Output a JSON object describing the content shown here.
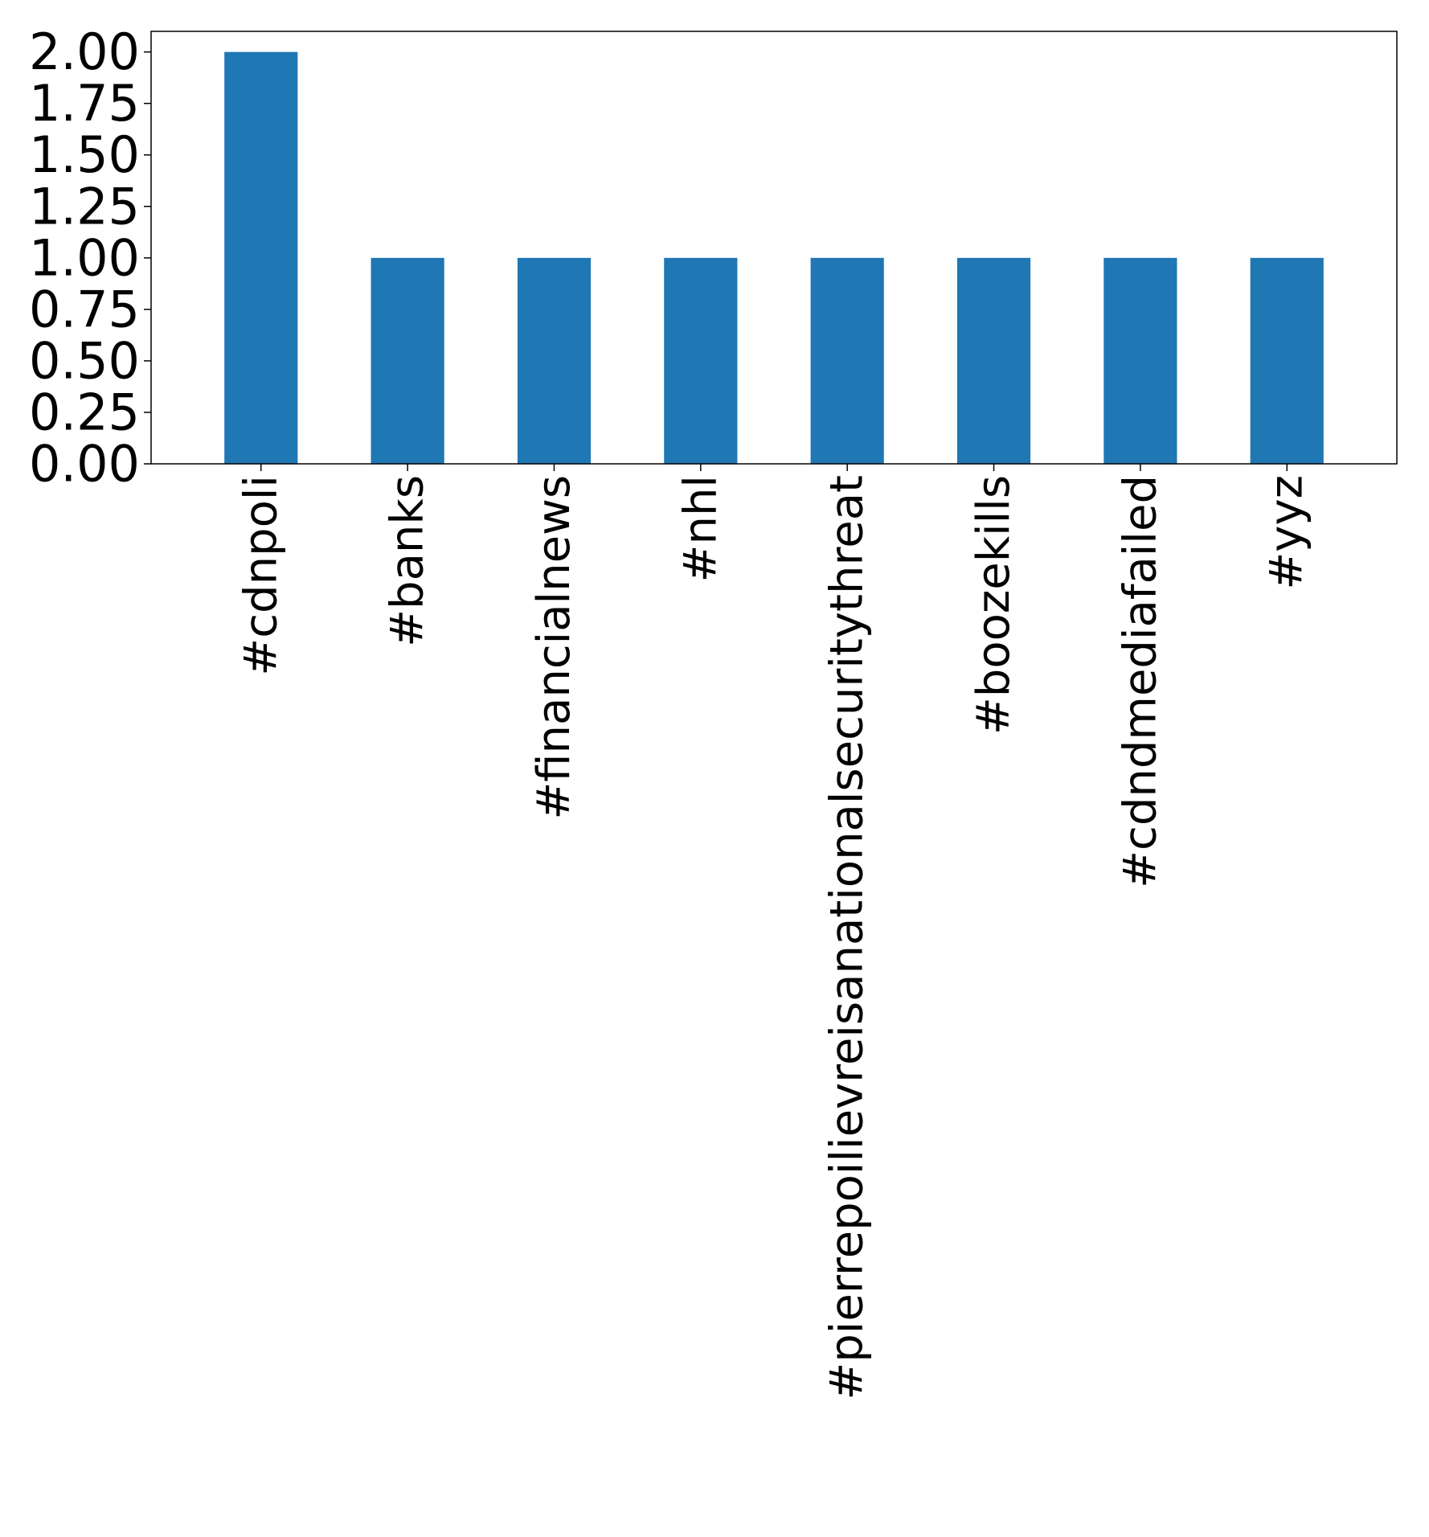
{
  "chart_data": {
    "type": "bar",
    "categories": [
      "#cdnpoli",
      "#banks",
      "#financialnews",
      "#nhl",
      "#pierrepoilievreisanationalsecuritythreat",
      "#boozekills",
      "#cdndmediafailed",
      "#yyz"
    ],
    "values": [
      2,
      1,
      1,
      1,
      1,
      1,
      1,
      1
    ],
    "title": "",
    "xlabel": "",
    "ylabel": "",
    "ylim": [
      0,
      2.1
    ],
    "yticks": [
      "0.00",
      "0.25",
      "0.50",
      "0.75",
      "1.00",
      "1.25",
      "1.50",
      "1.75",
      "2.00"
    ],
    "bar_color": "#1f77b4",
    "grid": false,
    "legend": "none"
  }
}
